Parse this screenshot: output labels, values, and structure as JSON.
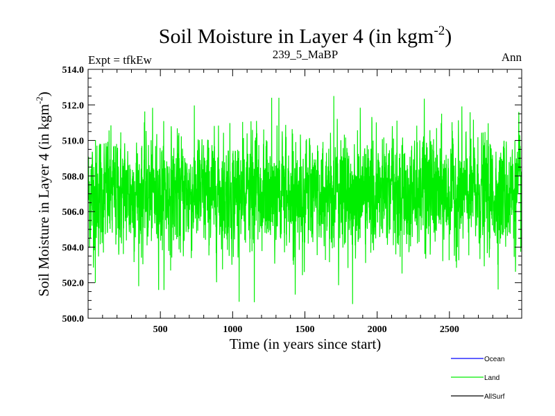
{
  "chart_data": {
    "type": "line",
    "title": "Soil Moisture in Layer 4 (in kgm",
    "title_superscript": "-2",
    "title_suffix": ")",
    "subtitle_left": "Expt = tfkEw",
    "subtitle_center": "239_5_MaBP",
    "subtitle_right": "Ann",
    "xlabel": "Time (in years since start)",
    "ylabel": "Soil Moisture in Layer 4 (in kgm",
    "ylabel_superscript": "-2",
    "ylabel_suffix": ")",
    "xlim": [
      0,
      3000
    ],
    "ylim": [
      500,
      514
    ],
    "x_ticks": [
      500,
      1000,
      1500,
      2000,
      2500
    ],
    "x_tick_labels": [
      "500",
      "1000",
      "1500",
      "2000",
      "2500"
    ],
    "y_ticks": [
      500,
      502,
      504,
      506,
      508,
      510,
      512,
      514
    ],
    "y_tick_labels": [
      "500.0",
      "502.0",
      "504.0",
      "506.0",
      "508.0",
      "510.0",
      "512.0",
      "514.0"
    ],
    "grid": false,
    "legend_placement": "bottom-right",
    "series": [
      {
        "name": "Ocean",
        "color": "#0000ff",
        "values": []
      },
      {
        "name": "Land",
        "color": "#00ee00",
        "mean": 507.0,
        "std": 1.6,
        "min": 500.8,
        "max": 512.5,
        "n_years": 3000
      },
      {
        "name": "AllSurf",
        "color": "#000000",
        "values": []
      }
    ],
    "extremes": [
      {
        "x": 1150,
        "y": 500.9
      },
      {
        "x": 1830,
        "y": 500.8
      },
      {
        "x": 1700,
        "y": 512.5
      },
      {
        "x": 1270,
        "y": 512.4
      },
      {
        "x": 1320,
        "y": 512.4
      },
      {
        "x": 50,
        "y": 502.0
      },
      {
        "x": 2980,
        "y": 511.6
      }
    ]
  }
}
